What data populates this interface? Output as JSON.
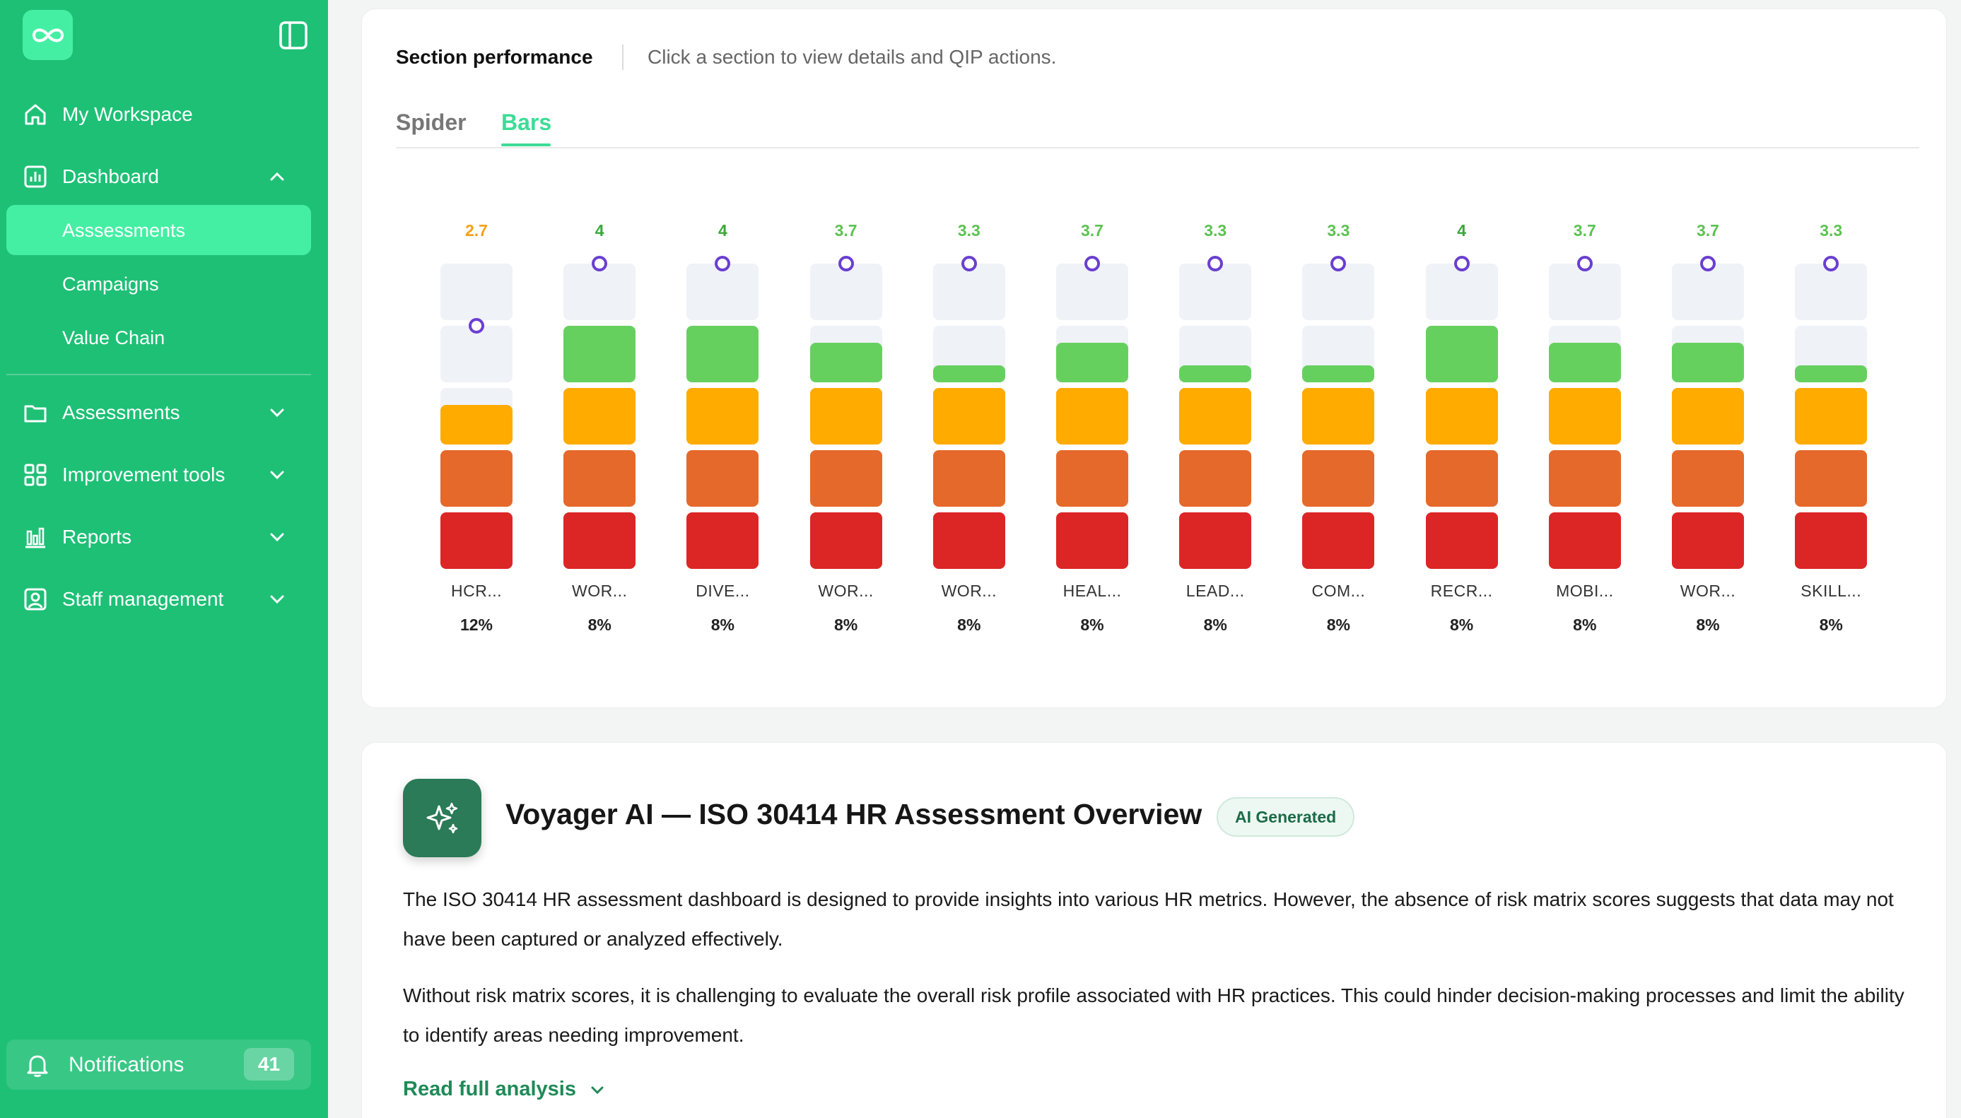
{
  "sidebar": {
    "logo_icon": "infinity-icon",
    "collapse_icon": "sidebar-toggle-icon",
    "items": [
      {
        "label": "My Workspace",
        "icon": "home-icon"
      },
      {
        "label": "Dashboard",
        "icon": "chart-box-icon",
        "expanded": true
      },
      {
        "label": "Assessments",
        "icon": "folder-icon"
      },
      {
        "label": "Improvement tools",
        "icon": "grid-icon"
      },
      {
        "label": "Reports",
        "icon": "bar-chart-icon"
      },
      {
        "label": "Staff management",
        "icon": "user-badge-icon"
      }
    ],
    "dashboard_children": [
      {
        "label": "Asssessments",
        "active": true
      },
      {
        "label": "Campaigns"
      },
      {
        "label": "Value Chain"
      }
    ],
    "notifications": {
      "label": "Notifications",
      "count": "41",
      "icon": "bell-icon"
    }
  },
  "section": {
    "title": "Section performance",
    "subtitle": "Click a section to view details and QIP actions.",
    "tabs": [
      {
        "label": "Spider",
        "active": false
      },
      {
        "label": "Bars",
        "active": true
      }
    ]
  },
  "chart_data": {
    "type": "bar",
    "scale_max": 5,
    "segment_colors": [
      "#dc2626",
      "#e5692a",
      "#ffab00",
      "#66d05e",
      "#eff2f7"
    ],
    "score_colors": {
      "low": "#f4a016",
      "high": "#5cc252",
      "accent_high": "#3aa83a"
    },
    "marker_color": "#6a3fd0",
    "categories": [
      "HCR...",
      "WOR...",
      "DIVE...",
      "WOR...",
      "WOR...",
      "HEAL...",
      "LEAD...",
      "COM...",
      "RECR...",
      "MOBI...",
      "WOR...",
      "SKILL..."
    ],
    "scores": [
      2.7,
      4,
      4,
      3.7,
      3.3,
      3.7,
      3.3,
      3.3,
      4,
      3.7,
      3.7,
      3.3
    ],
    "score_labels": [
      "2.7",
      "4",
      "4",
      "3.7",
      "3.3",
      "3.7",
      "3.3",
      "3.3",
      "4",
      "3.7",
      "3.7",
      "3.3"
    ],
    "targets": [
      4,
      5,
      5,
      5,
      5,
      5,
      5,
      5,
      5,
      5,
      5,
      5
    ],
    "weights": [
      "12%",
      "8%",
      "8%",
      "8%",
      "8%",
      "8%",
      "8%",
      "8%",
      "8%",
      "8%",
      "8%",
      "8%"
    ]
  },
  "ai": {
    "icon": "sparkles-icon",
    "title": "Voyager AI — ISO 30414 HR Assessment Overview",
    "badge": "AI Generated",
    "paragraphs": [
      "The ISO 30414 HR assessment dashboard is designed to provide insights into various HR metrics. However, the absence of risk matrix scores suggests that data may not have been captured or analyzed effectively.",
      "Without risk matrix scores, it is challenging to evaluate the overall risk profile associated with HR practices. This could hinder decision-making processes and limit the ability to identify areas needing improvement."
    ],
    "read_more": "Read full analysis",
    "read_more_icon": "chevron-down-icon"
  }
}
